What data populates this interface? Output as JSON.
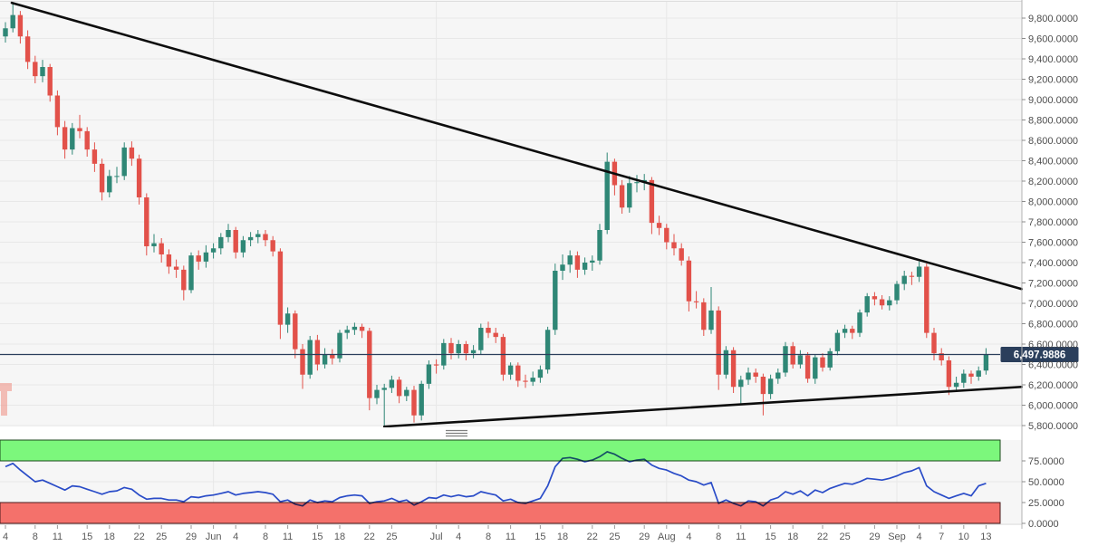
{
  "chart_data": {
    "type": "candlestick",
    "title": "",
    "instrument_note": "daily price chart with descending resistance / ascending support trendlines and RSI sub-panel",
    "date_range": {
      "start": "May 4",
      "end": "Sep 13"
    },
    "current_price": {
      "value": 6497.9886,
      "label": "6,497.9886"
    },
    "price_axis": {
      "side": "right",
      "tick_values": [
        9800,
        9600,
        9400,
        9200,
        9000,
        8800,
        8600,
        8400,
        8200,
        8000,
        7800,
        7600,
        7400,
        7200,
        7000,
        6800,
        6600,
        6400,
        6200,
        6000,
        5800
      ],
      "tick_labels": [
        "9,800.0000",
        "9,600.0000",
        "9,400.0000",
        "9,200.0000",
        "9,000.0000",
        "8,800.0000",
        "8,600.0000",
        "8,400.0000",
        "8,200.0000",
        "8,000.0000",
        "7,800.0000",
        "7,600.0000",
        "7,400.0000",
        "7,200.0000",
        "7,000.0000",
        "6,800.0000",
        "6,600.0000",
        "6,400.0000",
        "6,200.0000",
        "6,000.0000",
        "5,800.0000"
      ],
      "range": [
        5800,
        9950
      ]
    },
    "time_axis": {
      "ticks": [
        {
          "i": 0,
          "t": "4"
        },
        {
          "i": 4,
          "t": "8"
        },
        {
          "i": 7,
          "t": "11"
        },
        {
          "i": 11,
          "t": "15"
        },
        {
          "i": 14,
          "t": "18"
        },
        {
          "i": 18,
          "t": "22"
        },
        {
          "i": 21,
          "t": "25"
        },
        {
          "i": 25,
          "t": "29"
        },
        {
          "i": 28,
          "t": "Jun"
        },
        {
          "i": 31,
          "t": "4"
        },
        {
          "i": 35,
          "t": "8"
        },
        {
          "i": 38,
          "t": "11"
        },
        {
          "i": 42,
          "t": "15"
        },
        {
          "i": 45,
          "t": "18"
        },
        {
          "i": 49,
          "t": "22"
        },
        {
          "i": 52,
          "t": "25"
        },
        {
          "i": 58,
          "t": "Jul"
        },
        {
          "i": 61,
          "t": "4"
        },
        {
          "i": 65,
          "t": "8"
        },
        {
          "i": 68,
          "t": "11"
        },
        {
          "i": 72,
          "t": "15"
        },
        {
          "i": 75,
          "t": "18"
        },
        {
          "i": 79,
          "t": "22"
        },
        {
          "i": 82,
          "t": "25"
        },
        {
          "i": 86,
          "t": "29"
        },
        {
          "i": 89,
          "t": "Aug"
        },
        {
          "i": 92,
          "t": "4"
        },
        {
          "i": 96,
          "t": "8"
        },
        {
          "i": 99,
          "t": "11"
        },
        {
          "i": 103,
          "t": "15"
        },
        {
          "i": 106,
          "t": "18"
        },
        {
          "i": 110,
          "t": "22"
        },
        {
          "i": 113,
          "t": "25"
        },
        {
          "i": 117,
          "t": "29"
        },
        {
          "i": 120,
          "t": "Sep"
        },
        {
          "i": 123,
          "t": "4"
        },
        {
          "i": 126,
          "t": "7"
        },
        {
          "i": 129,
          "t": "10"
        },
        {
          "i": 132,
          "t": "13"
        }
      ],
      "month_start_idx": [
        28,
        58,
        89,
        120
      ]
    },
    "candles_ohlc": [
      [
        9620,
        9760,
        9560,
        9700
      ],
      [
        9700,
        9950,
        9660,
        9830
      ],
      [
        9830,
        9870,
        9550,
        9620
      ],
      [
        9620,
        9680,
        9300,
        9370
      ],
      [
        9370,
        9430,
        9160,
        9230
      ],
      [
        9230,
        9390,
        9170,
        9320
      ],
      [
        9320,
        9350,
        8980,
        9040
      ],
      [
        9040,
        9090,
        8650,
        8730
      ],
      [
        8730,
        8790,
        8420,
        8510
      ],
      [
        8510,
        8770,
        8460,
        8720
      ],
      [
        8720,
        8850,
        8620,
        8690
      ],
      [
        8690,
        8730,
        8440,
        8510
      ],
      [
        8510,
        8580,
        8290,
        8370
      ],
      [
        8370,
        8420,
        8010,
        8090
      ],
      [
        8090,
        8310,
        8040,
        8250
      ],
      [
        8250,
        8340,
        8180,
        8250
      ],
      [
        8250,
        8580,
        8210,
        8530
      ],
      [
        8530,
        8590,
        8350,
        8420
      ],
      [
        8420,
        8460,
        7970,
        8040
      ],
      [
        8040,
        8080,
        7470,
        7560
      ],
      [
        7560,
        7680,
        7500,
        7590
      ],
      [
        7590,
        7640,
        7400,
        7480
      ],
      [
        7480,
        7530,
        7290,
        7360
      ],
      [
        7360,
        7430,
        7250,
        7330
      ],
      [
        7330,
        7370,
        7030,
        7130
      ],
      [
        7130,
        7500,
        7100,
        7470
      ],
      [
        7470,
        7520,
        7330,
        7410
      ],
      [
        7410,
        7570,
        7350,
        7500
      ],
      [
        7500,
        7590,
        7440,
        7540
      ],
      [
        7540,
        7690,
        7480,
        7650
      ],
      [
        7650,
        7780,
        7600,
        7720
      ],
      [
        7720,
        7750,
        7440,
        7500
      ],
      [
        7500,
        7660,
        7450,
        7620
      ],
      [
        7620,
        7700,
        7560,
        7650
      ],
      [
        7650,
        7720,
        7590,
        7680
      ],
      [
        7680,
        7720,
        7560,
        7620
      ],
      [
        7620,
        7660,
        7460,
        7510
      ],
      [
        7510,
        7540,
        6650,
        6790
      ],
      [
        6790,
        6960,
        6710,
        6900
      ],
      [
        6900,
        6930,
        6460,
        6550
      ],
      [
        6550,
        6600,
        6160,
        6300
      ],
      [
        6300,
        6680,
        6260,
        6640
      ],
      [
        6640,
        6690,
        6340,
        6400
      ],
      [
        6400,
        6560,
        6360,
        6500
      ],
      [
        6500,
        6550,
        6400,
        6460
      ],
      [
        6460,
        6740,
        6420,
        6710
      ],
      [
        6710,
        6780,
        6650,
        6740
      ],
      [
        6740,
        6810,
        6690,
        6770
      ],
      [
        6770,
        6800,
        6660,
        6730
      ],
      [
        6730,
        6760,
        5950,
        6070
      ],
      [
        6070,
        6200,
        6010,
        6150
      ],
      [
        6150,
        6210,
        5790,
        6170
      ],
      [
        6170,
        6290,
        6120,
        6250
      ],
      [
        6250,
        6280,
        6020,
        6090
      ],
      [
        6090,
        6180,
        6040,
        6150
      ],
      [
        6150,
        6190,
        5830,
        5900
      ],
      [
        5900,
        6240,
        5850,
        6210
      ],
      [
        6210,
        6440,
        6160,
        6400
      ],
      [
        6400,
        6450,
        6310,
        6390
      ],
      [
        6390,
        6650,
        6350,
        6610
      ],
      [
        6610,
        6660,
        6450,
        6510
      ],
      [
        6510,
        6640,
        6460,
        6600
      ],
      [
        6600,
        6630,
        6440,
        6510
      ],
      [
        6510,
        6590,
        6460,
        6540
      ],
      [
        6540,
        6800,
        6500,
        6760
      ],
      [
        6760,
        6820,
        6660,
        6710
      ],
      [
        6710,
        6760,
        6610,
        6670
      ],
      [
        6670,
        6700,
        6240,
        6300
      ],
      [
        6300,
        6420,
        6250,
        6390
      ],
      [
        6390,
        6420,
        6180,
        6240
      ],
      [
        6240,
        6300,
        6170,
        6230
      ],
      [
        6230,
        6330,
        6190,
        6270
      ],
      [
        6270,
        6390,
        6220,
        6350
      ],
      [
        6350,
        6770,
        6310,
        6740
      ],
      [
        6740,
        7390,
        6690,
        7320
      ],
      [
        7320,
        7480,
        7230,
        7380
      ],
      [
        7380,
        7520,
        7300,
        7470
      ],
      [
        7470,
        7510,
        7250,
        7330
      ],
      [
        7330,
        7450,
        7280,
        7400
      ],
      [
        7400,
        7470,
        7320,
        7420
      ],
      [
        7420,
        7780,
        7380,
        7720
      ],
      [
        7720,
        8480,
        7680,
        8390
      ],
      [
        8390,
        8420,
        8060,
        8160
      ],
      [
        8160,
        8210,
        7880,
        7940
      ],
      [
        7940,
        8250,
        7890,
        8180
      ],
      [
        8180,
        8260,
        8090,
        8190
      ],
      [
        8190,
        8270,
        8110,
        8210
      ],
      [
        8210,
        8240,
        7680,
        7790
      ],
      [
        7790,
        7860,
        7670,
        7740
      ],
      [
        7740,
        7780,
        7530,
        7600
      ],
      [
        7600,
        7680,
        7470,
        7540
      ],
      [
        7540,
        7590,
        7370,
        7420
      ],
      [
        7420,
        7460,
        6920,
        7020
      ],
      [
        7020,
        7120,
        6950,
        7010
      ],
      [
        7010,
        7050,
        6680,
        6740
      ],
      [
        6740,
        7160,
        6700,
        6930
      ],
      [
        6930,
        6970,
        6150,
        6300
      ],
      [
        6300,
        6580,
        6260,
        6540
      ],
      [
        6540,
        6570,
        6120,
        6180
      ],
      [
        6180,
        6290,
        6000,
        6250
      ],
      [
        6250,
        6370,
        6200,
        6320
      ],
      [
        6320,
        6360,
        6220,
        6280
      ],
      [
        6280,
        6310,
        5900,
        6110
      ],
      [
        6110,
        6300,
        6060,
        6260
      ],
      [
        6260,
        6360,
        6210,
        6320
      ],
      [
        6320,
        6620,
        6280,
        6580
      ],
      [
        6580,
        6620,
        6360,
        6400
      ],
      [
        6400,
        6540,
        6360,
        6490
      ],
      [
        6490,
        6520,
        6220,
        6260
      ],
      [
        6260,
        6500,
        6210,
        6470
      ],
      [
        6470,
        6510,
        6330,
        6370
      ],
      [
        6370,
        6560,
        6340,
        6530
      ],
      [
        6530,
        6740,
        6490,
        6710
      ],
      [
        6710,
        6790,
        6660,
        6750
      ],
      [
        6750,
        6780,
        6650,
        6710
      ],
      [
        6710,
        6940,
        6670,
        6910
      ],
      [
        6910,
        7100,
        6870,
        7070
      ],
      [
        7070,
        7110,
        6980,
        7040
      ],
      [
        7040,
        7080,
        6940,
        6980
      ],
      [
        6980,
        7070,
        6930,
        7030
      ],
      [
        7030,
        7220,
        6990,
        7190
      ],
      [
        7190,
        7320,
        7130,
        7270
      ],
      [
        7270,
        7310,
        7180,
        7260
      ],
      [
        7260,
        7410,
        7210,
        7360
      ],
      [
        7360,
        7390,
        6660,
        6710
      ],
      [
        6710,
        6760,
        6440,
        6510
      ],
      [
        6510,
        6560,
        6390,
        6440
      ],
      [
        6440,
        6480,
        6100,
        6180
      ],
      [
        6180,
        6280,
        6130,
        6220
      ],
      [
        6220,
        6350,
        6170,
        6310
      ],
      [
        6310,
        6340,
        6210,
        6280
      ],
      [
        6280,
        6380,
        6240,
        6340
      ],
      [
        6340,
        6560,
        6300,
        6500
      ]
    ],
    "trendlines": [
      {
        "name": "descending-resistance",
        "p1_idx": 0.85,
        "p1_price": 9950,
        "p2_idx": 136.8,
        "p2_price": 7140
      },
      {
        "name": "ascending-support",
        "p1_idx": 51.0,
        "p1_price": 5790,
        "p2_idx": 136.8,
        "p2_price": 6180
      }
    ],
    "rsi": {
      "values": [
        68,
        72,
        64,
        57,
        50,
        52,
        48,
        44,
        40,
        45,
        44,
        41,
        38,
        35,
        38,
        39,
        43,
        41,
        34,
        29,
        30,
        30,
        28,
        28,
        26,
        32,
        31,
        33,
        34,
        36,
        38,
        34,
        36,
        37,
        38,
        37,
        35,
        26,
        28,
        23,
        21,
        28,
        25,
        27,
        26,
        31,
        33,
        34,
        33,
        24,
        26,
        27,
        30,
        26,
        28,
        22,
        26,
        31,
        30,
        34,
        32,
        34,
        32,
        33,
        38,
        36,
        34,
        27,
        29,
        25,
        24,
        27,
        30,
        45,
        68,
        78,
        79,
        77,
        74,
        76,
        80,
        86,
        83,
        78,
        74,
        76,
        77,
        70,
        66,
        64,
        60,
        57,
        52,
        50,
        46,
        49,
        24,
        28,
        24,
        21,
        27,
        26,
        21,
        28,
        31,
        38,
        35,
        39,
        33,
        40,
        37,
        42,
        45,
        48,
        47,
        50,
        54,
        53,
        52,
        54,
        57,
        61,
        63,
        67,
        45,
        38,
        34,
        30,
        33,
        36,
        33,
        45,
        48
      ],
      "overbought_band": [
        75,
        100
      ],
      "oversold_band": [
        0,
        25
      ],
      "tick_values": [
        75,
        50,
        25,
        0
      ],
      "tick_labels": [
        "75.0000",
        "50.0000",
        "25.0000",
        "0.0000"
      ]
    },
    "colors": {
      "pane_bg": "#f6f6f6",
      "grid": "#e8e8e8",
      "axis_line": "#b3b3b3",
      "axis_text": "#4d4d4d",
      "candle_up": "#2f8776",
      "candle_down": "#e2514a",
      "trendline": "#0d0d0d",
      "price_line": "#2b3f5c",
      "price_label_bg": "#2b3f5c",
      "price_label_text": "#ffffff",
      "rsi_line": "#2b4fd0",
      "band_green_fill": "#7cf77c",
      "band_green_stroke": "#1c4a1c",
      "band_red_fill": "#f4716b",
      "band_red_stroke": "#4a1c1c",
      "watermark": "rgba(238,140,128,0.55)"
    }
  }
}
